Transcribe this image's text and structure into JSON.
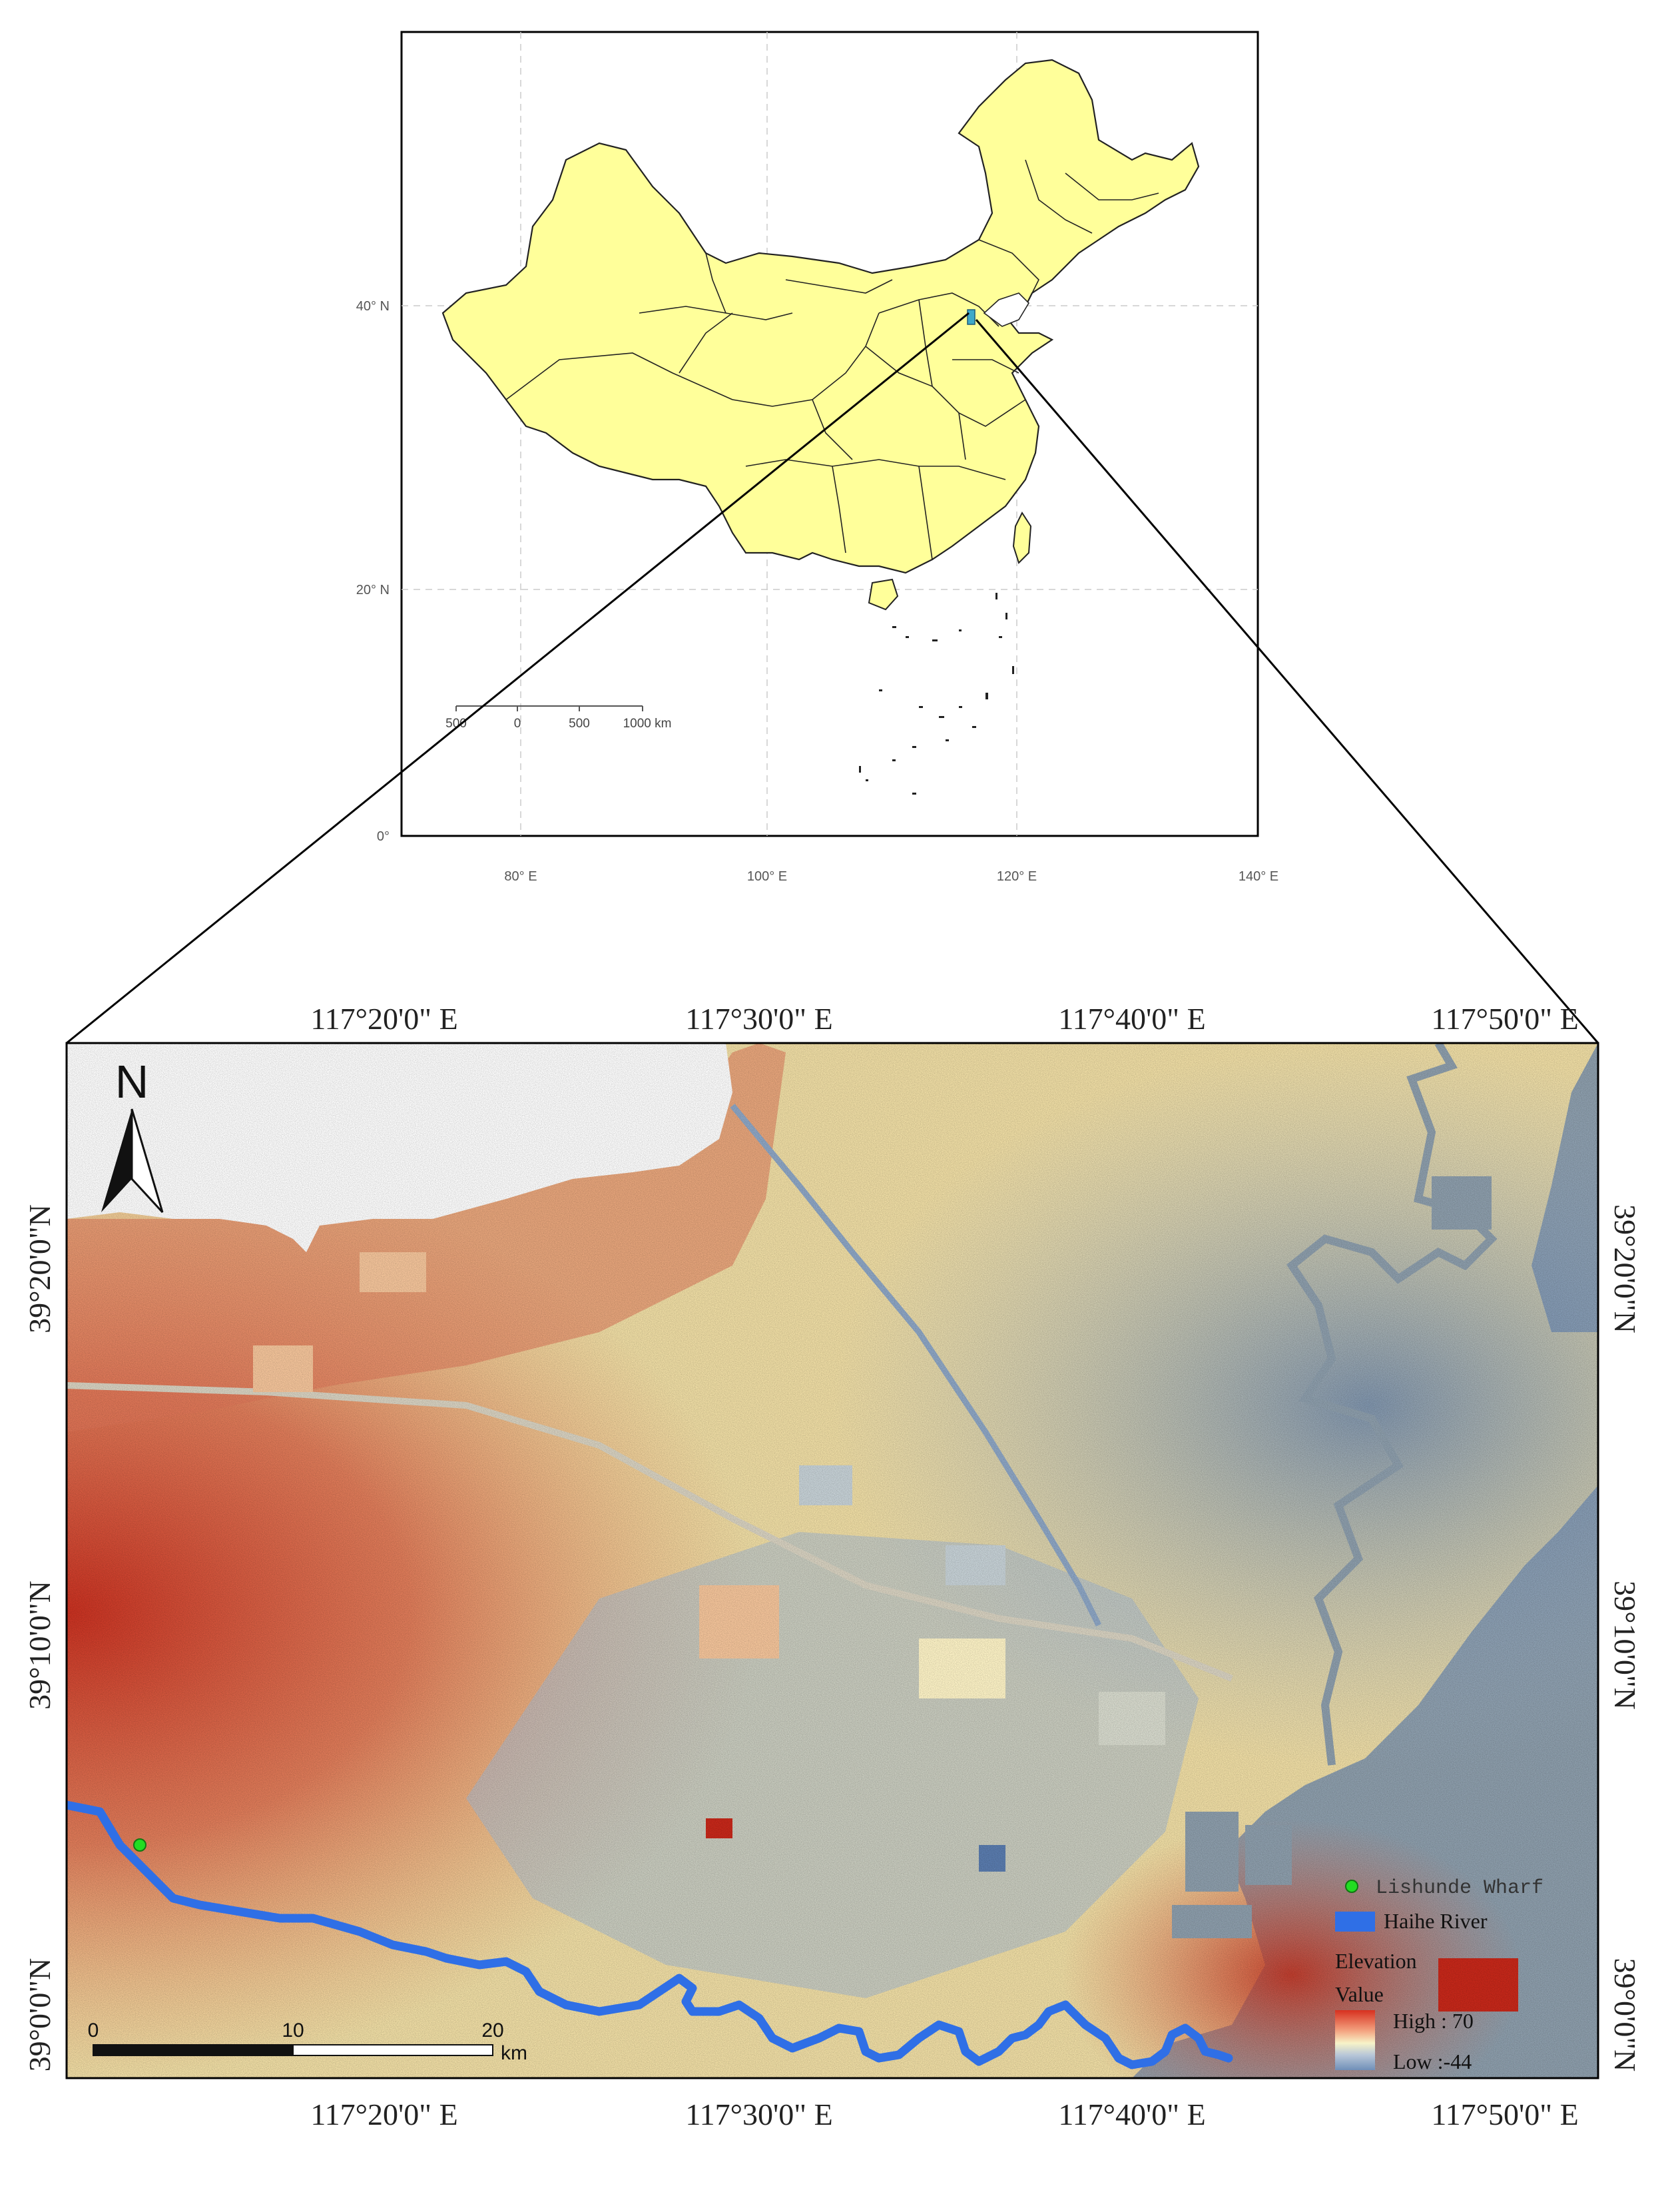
{
  "inset_map": {
    "lat_labels": [
      "40° N",
      "20° N",
      "0°"
    ],
    "lon_labels": [
      "80° E",
      "100° E",
      "120° E",
      "140° E"
    ],
    "scale_labels": [
      "500",
      "0",
      "500",
      "1000 km"
    ]
  },
  "main_map": {
    "top_lon_labels": [
      "117°20'0\" E",
      "117°30'0\" E",
      "117°40'0\" E",
      "117°50'0\" E"
    ],
    "bottom_lon_labels": [
      "117°20'0\" E",
      "117°30'0\" E",
      "117°40'0\" E",
      "117°50'0\" E"
    ],
    "left_lat_labels": [
      "39°20'0\"N",
      "39°10'0\"N",
      "39°0'0\"N"
    ],
    "right_lat_labels": [
      "39°20'0\"N",
      "39°10'0\"N",
      "39°0'0\"N"
    ],
    "north_arrow": {
      "letter": "N",
      "icon": "north-arrow-icon"
    },
    "scale_bar": {
      "labels": [
        "0",
        "10",
        "20"
      ],
      "unit": "km"
    },
    "legend": {
      "wharf_label": "Lishunde Wharf",
      "river_label": "Haihe River",
      "elevation_title_1": "Elevation",
      "elevation_title_2": "Value",
      "high_label": "High : 70",
      "low_label": "Low :-44",
      "wharf_color": "#22dd22",
      "river_color": "#2f6fe6",
      "ramp_high_color": "#d7301f",
      "ramp_low_color": "#6f8fb8"
    }
  },
  "colors": {
    "land": "#ffff9a",
    "highlight": "#3fa9c9",
    "sea": "#8e9fad"
  }
}
